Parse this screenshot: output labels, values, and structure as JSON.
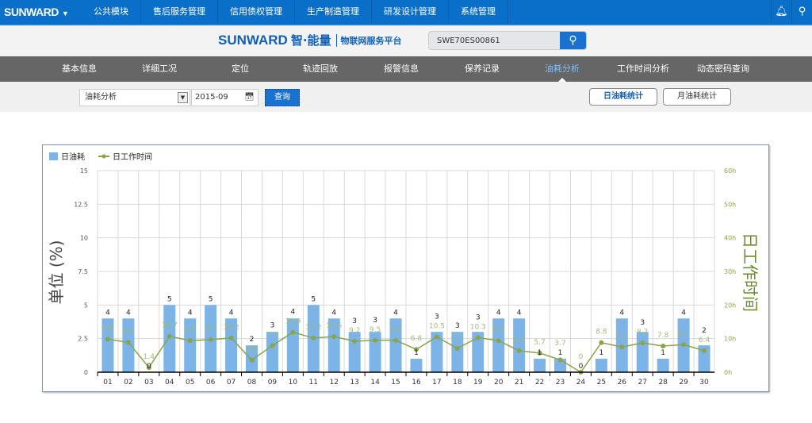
{
  "topbar": {
    "logo": "SUNWARD",
    "nav": [
      "公共模块",
      "售后服务管理",
      "信用债权管理",
      "生产制造管理",
      "研发设计管理",
      "系统管理"
    ],
    "icons": [
      "bell-icon",
      "search-icon"
    ]
  },
  "brand": {
    "logo": "SUNWARD",
    "slogan": "智·能量",
    "platform": "物联网服务平台",
    "search_value": "SWE70ES00861"
  },
  "tabs": {
    "items": [
      "基本信息",
      "详细工况",
      "定位",
      "轨迹回放",
      "报警信息",
      "保养记录",
      "油耗分析",
      "工作时间分析",
      "动态密码查询"
    ],
    "active": 6
  },
  "filter": {
    "type_value": "油耗分析",
    "date_value": "2015-09",
    "query_label": "查询",
    "daily_label": "日油耗统计",
    "monthly_label": "月油耗统计"
  },
  "colors": {
    "bar": "#7cb4e8",
    "line": "#8ba44a",
    "accent": "#1a72d0"
  },
  "chart_data": {
    "type": "bar+line",
    "categories": [
      "01",
      "02",
      "03",
      "04",
      "05",
      "06",
      "07",
      "08",
      "09",
      "10",
      "11",
      "12",
      "13",
      "14",
      "15",
      "16",
      "17",
      "18",
      "19",
      "20",
      "21",
      "22",
      "23",
      "24",
      "25",
      "26",
      "27",
      "28",
      "29",
      "30"
    ],
    "series": [
      {
        "name": "日油耗",
        "type": "bar",
        "axis": "left",
        "values": [
          4,
          4,
          0,
          5,
          4,
          5,
          4,
          2,
          3,
          4,
          5,
          4,
          3,
          3,
          4,
          1,
          3,
          3,
          3,
          4,
          4,
          1,
          1,
          0,
          1,
          4,
          3,
          1,
          4,
          2
        ]
      },
      {
        "name": "日工作时间",
        "type": "line",
        "axis": "right",
        "values": [
          9.8,
          8.9,
          1.4,
          10.7,
          9.4,
          9.7,
          10.2,
          3.6,
          7.9,
          11.9,
          10.2,
          10.6,
          9.2,
          9.5,
          9.5,
          6.8,
          10.5,
          7.1,
          10.3,
          9.4,
          6.4,
          5.7,
          3.7,
          0,
          8.8,
          7.5,
          8.7,
          7.8,
          8.2,
          6.4
        ]
      }
    ],
    "ylabel": "单位 (%)",
    "y2label": "日工作时间",
    "ylim": [
      0,
      15
    ],
    "yticks": [
      "0",
      "2.5",
      "5",
      "7.5",
      "10",
      "12.5",
      "15"
    ],
    "y2lim": [
      0,
      60
    ],
    "y2ticks": [
      "0h",
      "10h",
      "20h",
      "30h",
      "40h",
      "50h",
      "60h"
    ],
    "grid": true,
    "legend": "top-left"
  }
}
